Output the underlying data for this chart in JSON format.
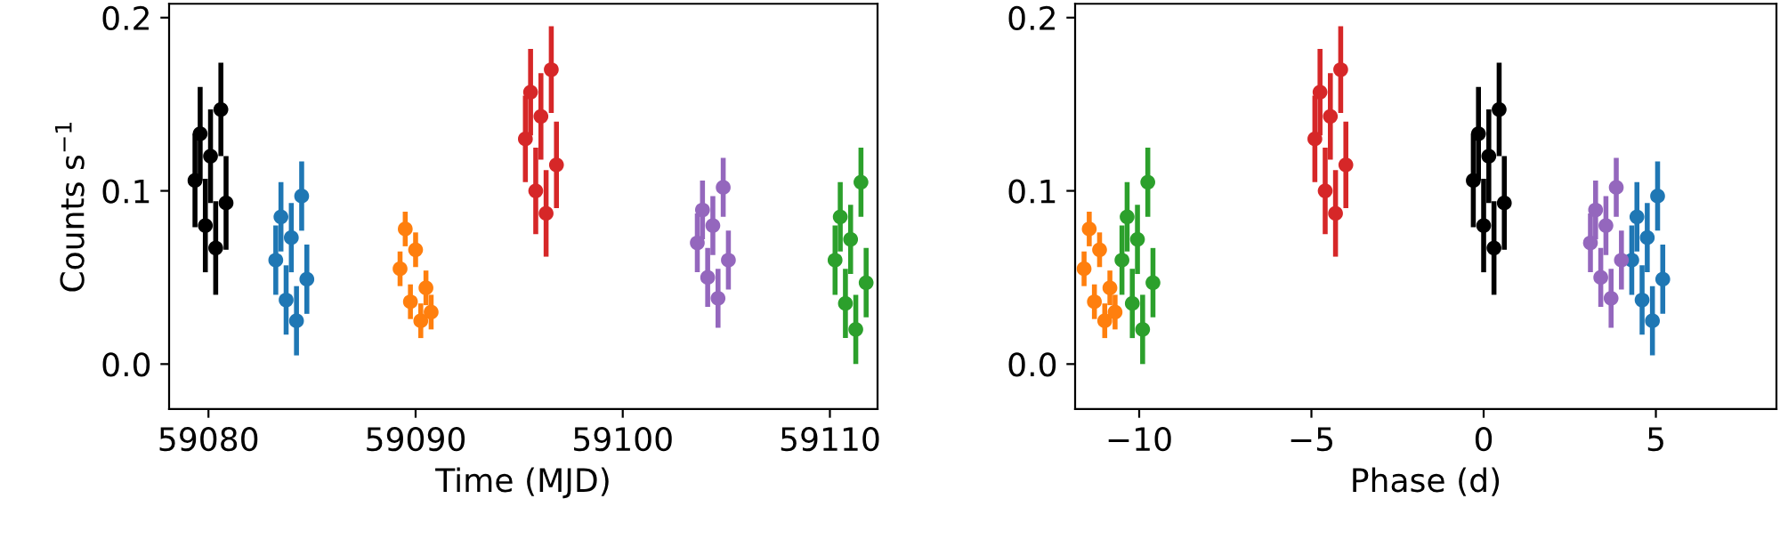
{
  "chart_data": [
    {
      "type": "scatter",
      "xlabel": "Time (MJD)",
      "ylabel": "Counts s$^{−1}$",
      "marker": "circle",
      "grid": false,
      "legend": false,
      "xlim": [
        59078.1,
        59112.3
      ],
      "xticks": [
        59080,
        59090,
        59100,
        59110
      ],
      "ylim": [
        -0.026,
        0.208
      ],
      "yticks": [
        {
          "value": 0,
          "label": "0.0"
        },
        {
          "value": 0.1,
          "label": "0.1"
        },
        {
          "value": 0.2,
          "label": "0.2"
        }
      ],
      "series": [
        {
          "color": "#000000",
          "x": [
            59079.35,
            59079.6,
            59079.85,
            59080.1,
            59080.35,
            59080.6,
            59080.85
          ],
          "values": [
            0.106,
            0.133,
            0.08,
            0.12,
            0.067,
            0.147,
            0.093
          ],
          "errors": [
            0.027,
            0.027,
            0.027,
            0.027,
            0.027,
            0.027,
            0.027
          ]
        },
        {
          "color": "#1f77b4",
          "x": [
            59083.25,
            59083.5,
            59083.75,
            59084.0,
            59084.25,
            59084.5,
            59084.75
          ],
          "values": [
            0.06,
            0.085,
            0.037,
            0.073,
            0.025,
            0.097,
            0.049
          ],
          "errors": [
            0.02,
            0.02,
            0.02,
            0.02,
            0.02,
            0.02,
            0.02
          ]
        },
        {
          "color": "#ff7f0e",
          "x": [
            59089.25,
            59089.5,
            59089.75,
            59090.0,
            59090.25,
            59090.5,
            59090.75
          ],
          "values": [
            0.055,
            0.078,
            0.036,
            0.066,
            0.025,
            0.044,
            0.03
          ],
          "errors": [
            0.01,
            0.01,
            0.01,
            0.01,
            0.01,
            0.01,
            0.01
          ]
        },
        {
          "color": "#d62728",
          "x": [
            59095.3,
            59095.55,
            59095.8,
            59096.05,
            59096.3,
            59096.55,
            59096.8
          ],
          "values": [
            0.13,
            0.157,
            0.1,
            0.143,
            0.087,
            0.17,
            0.115
          ],
          "errors": [
            0.025,
            0.025,
            0.025,
            0.025,
            0.025,
            0.025,
            0.025
          ]
        },
        {
          "color": "#9467bd",
          "x": [
            59103.6,
            59103.85,
            59104.1,
            59104.35,
            59104.6,
            59104.85,
            59105.1
          ],
          "values": [
            0.07,
            0.089,
            0.05,
            0.08,
            0.038,
            0.102,
            0.06
          ],
          "errors": [
            0.017,
            0.017,
            0.017,
            0.017,
            0.017,
            0.017,
            0.017
          ]
        },
        {
          "color": "#2ca02c",
          "x": [
            59110.25,
            59110.5,
            59110.75,
            59111.0,
            59111.25,
            59111.5,
            59111.75
          ],
          "values": [
            0.06,
            0.085,
            0.035,
            0.072,
            0.02,
            0.105,
            0.047
          ],
          "errors": [
            0.02,
            0.02,
            0.02,
            0.02,
            0.02,
            0.02,
            0.02
          ]
        }
      ]
    },
    {
      "type": "scatter",
      "xlabel": "Phase (d)",
      "marker": "circle",
      "grid": false,
      "legend": false,
      "xlim": [
        -11.86,
        8.5
      ],
      "xticks": [
        {
          "value": -10,
          "label": "−10"
        },
        {
          "value": -5,
          "label": "−5"
        },
        0,
        5
      ],
      "ylim": [
        -0.026,
        0.208
      ],
      "yticks": [
        {
          "value": 0,
          "label": "0.0"
        },
        {
          "value": 0.1,
          "label": "0.1"
        },
        {
          "value": 0.2,
          "label": "0.2"
        }
      ],
      "series": [
        {
          "color": "#000000",
          "x": [
            -0.3,
            -0.15,
            0.0,
            0.15,
            0.3,
            0.45,
            0.6
          ],
          "values": [
            0.106,
            0.133,
            0.08,
            0.12,
            0.067,
            0.147,
            0.093
          ],
          "errors": [
            0.027,
            0.027,
            0.027,
            0.027,
            0.027,
            0.027,
            0.027
          ]
        },
        {
          "color": "#1f77b4",
          "x": [
            4.3,
            4.45,
            4.6,
            4.75,
            4.9,
            5.05,
            5.2
          ],
          "values": [
            0.06,
            0.085,
            0.037,
            0.073,
            0.025,
            0.097,
            0.049
          ],
          "errors": [
            0.02,
            0.02,
            0.02,
            0.02,
            0.02,
            0.02,
            0.02
          ]
        },
        {
          "color": "#ff7f0e",
          "x": [
            -11.6,
            -11.45,
            -11.3,
            -11.15,
            -11.0,
            -10.85,
            -10.7
          ],
          "values": [
            0.055,
            0.078,
            0.036,
            0.066,
            0.025,
            0.044,
            0.03
          ],
          "errors": [
            0.01,
            0.01,
            0.01,
            0.01,
            0.01,
            0.01,
            0.01
          ]
        },
        {
          "color": "#d62728",
          "x": [
            -4.9,
            -4.75,
            -4.6,
            -4.45,
            -4.3,
            -4.15,
            -4.0
          ],
          "values": [
            0.13,
            0.157,
            0.1,
            0.143,
            0.087,
            0.17,
            0.115
          ],
          "errors": [
            0.025,
            0.025,
            0.025,
            0.025,
            0.025,
            0.025,
            0.025
          ]
        },
        {
          "color": "#9467bd",
          "x": [
            3.1,
            3.25,
            3.4,
            3.55,
            3.7,
            3.85,
            4.0
          ],
          "values": [
            0.07,
            0.089,
            0.05,
            0.08,
            0.038,
            0.102,
            0.06
          ],
          "errors": [
            0.017,
            0.017,
            0.017,
            0.017,
            0.017,
            0.017,
            0.017
          ]
        },
        {
          "color": "#2ca02c",
          "x": [
            -10.5,
            -10.35,
            -10.2,
            -10.05,
            -9.9,
            -9.75,
            -9.6
          ],
          "values": [
            0.06,
            0.085,
            0.035,
            0.072,
            0.02,
            0.105,
            0.047
          ],
          "errors": [
            0.02,
            0.02,
            0.02,
            0.02,
            0.02,
            0.02,
            0.02
          ]
        }
      ]
    }
  ]
}
